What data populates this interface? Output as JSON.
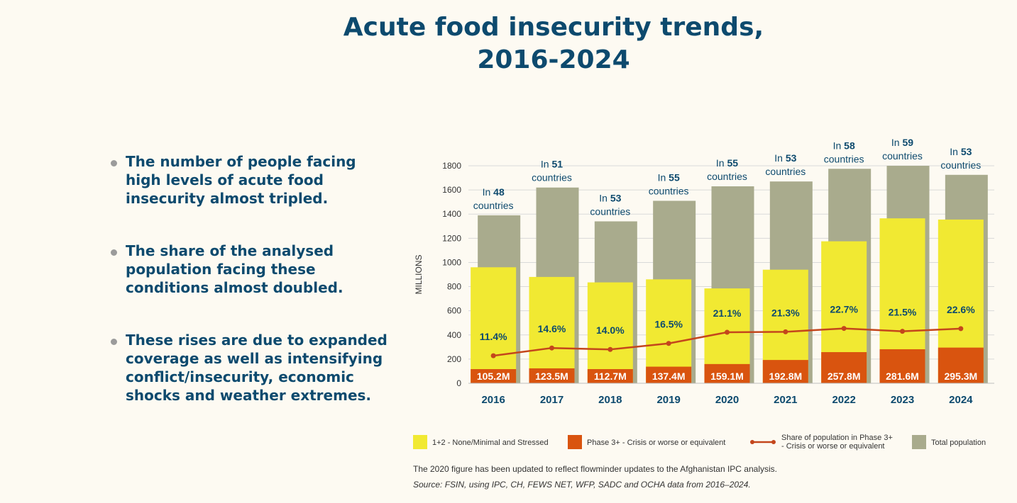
{
  "title": {
    "line1": "Acute food insecurity trends,",
    "line2": "2016-2024"
  },
  "bullets": [
    "The number of people facing high levels of acute food insecurity almost tripled.",
    "The share of the analysed population facing these conditions almost doubled.",
    "These rises are due to expanded coverage as well as intensifying conflict/insecurity, economic shocks and weather extremes."
  ],
  "chart_data": {
    "type": "bar",
    "ylabel": "MILLIONS",
    "ylim": [
      0,
      1800
    ],
    "yticks": [
      0,
      200,
      400,
      600,
      800,
      1000,
      1200,
      1400,
      1600,
      1800
    ],
    "categories": [
      "2016",
      "2017",
      "2018",
      "2019",
      "2020",
      "2021",
      "2022",
      "2023",
      "2024"
    ],
    "series": [
      {
        "name": "Total population",
        "values": [
          1390,
          1620,
          1340,
          1510,
          1630,
          1670,
          1775,
          1800,
          1725
        ]
      },
      {
        "name": "1+2 - None/Minimal and Stressed",
        "values": [
          960,
          880,
          835,
          860,
          785,
          940,
          1175,
          1365,
          1355
        ]
      },
      {
        "name": "Phase 3+ - Crisis or worse or equivalent",
        "values": [
          105.2,
          123.5,
          112.7,
          137.4,
          159.1,
          192.8,
          257.8,
          281.6,
          295.3
        ]
      },
      {
        "name": "Share of population in Phase 3+ - Crisis or worse or equivalent",
        "values": [
          11.4,
          14.6,
          14.0,
          16.5,
          21.1,
          21.3,
          22.7,
          21.5,
          22.6
        ]
      }
    ],
    "phase3_labels": [
      "105.2M",
      "123.5M",
      "112.7M",
      "137.4M",
      "159.1M",
      "192.8M",
      "257.8M",
      "281.6M",
      "295.3M"
    ],
    "share_labels": [
      "11.4%",
      "14.6%",
      "14.0%",
      "16.5%",
      "21.1%",
      "21.3%",
      "22.7%",
      "21.5%",
      "22.6%"
    ],
    "countries": [
      "48",
      "51",
      "53",
      "55",
      "55",
      "53",
      "58",
      "59",
      "53"
    ],
    "countries_prefix": "In",
    "countries_suffix": "countries",
    "colors": {
      "stressed": "#f1e932",
      "phase3": "#d9540f",
      "share": "#c4461c",
      "total": "#a9ab8d"
    }
  },
  "legend": {
    "stressed": "1+2 - None/Minimal and Stressed",
    "phase3": "Phase 3+ - Crisis or worse or equivalent",
    "share_line1": "Share of population in Phase 3+",
    "share_line2": "- Crisis or worse or equivalent",
    "total": "Total population"
  },
  "footnote": "The 2020 figure has been updated to reflect flowminder updates to the Afghanistan IPC analysis.",
  "source": "Source: FSIN, using IPC, CH, FEWS NET, WFP, SADC and OCHA data from 2016–2024."
}
